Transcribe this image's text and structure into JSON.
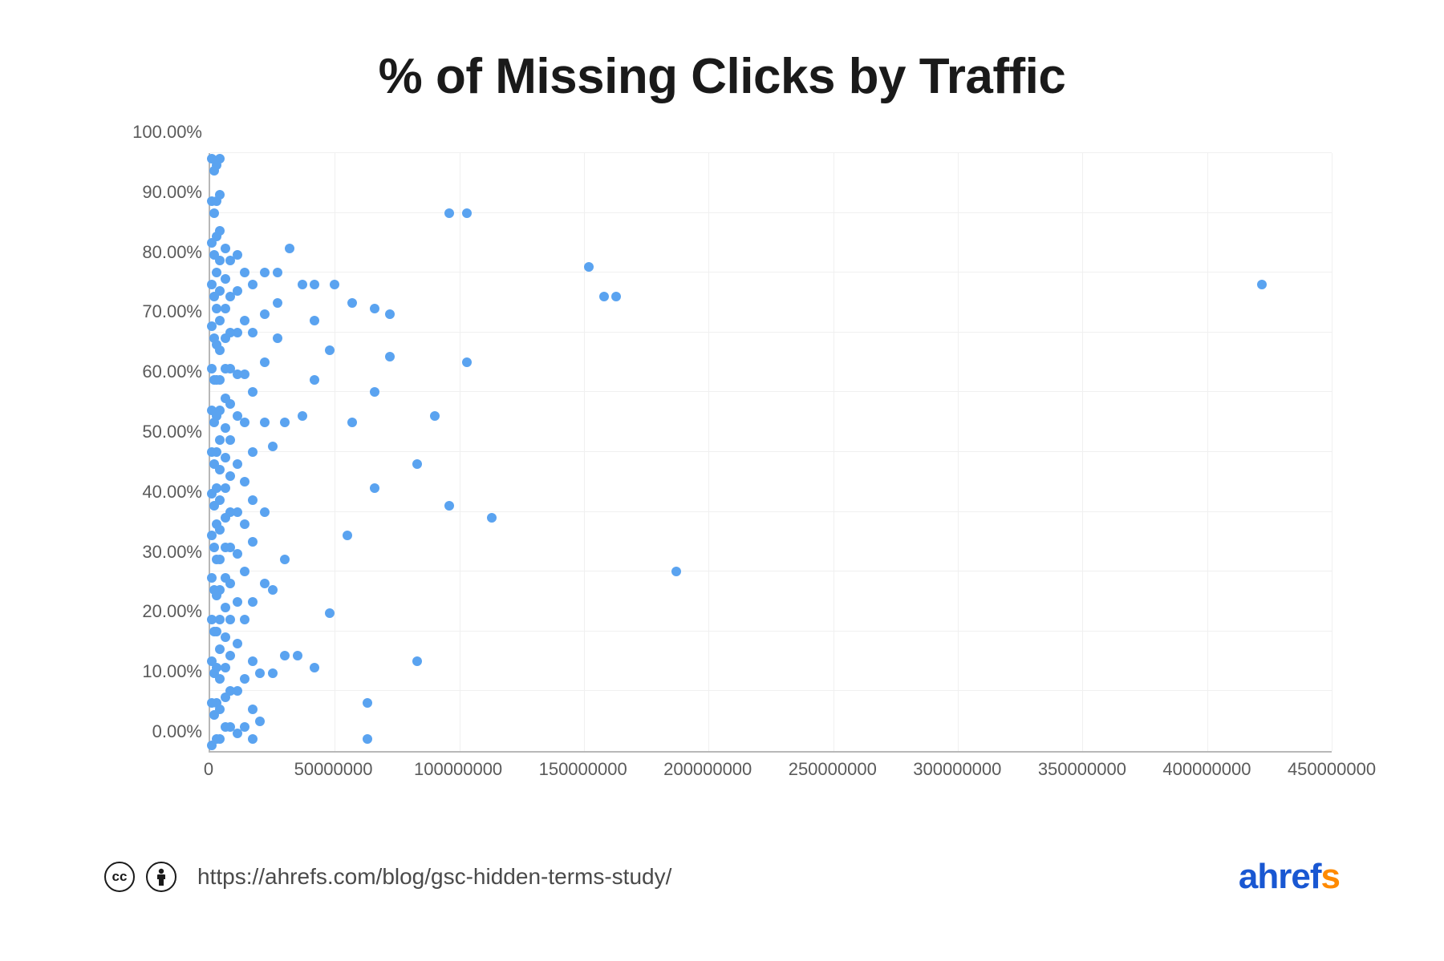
{
  "chart": {
    "type": "scatter",
    "title": "% of Missing Clicks by Traffic",
    "title_fontsize": 62,
    "title_color": "#1a1a1a",
    "background_color": "#ffffff",
    "grid_color": "#f0f0f0",
    "axis_color": "#b8b8b8",
    "tick_fontsize": 22,
    "tick_color": "#5a5a5a",
    "xlim": [
      0,
      450000000
    ],
    "ylim": [
      0,
      100
    ],
    "xticks": [
      0,
      50000000,
      100000000,
      150000000,
      200000000,
      250000000,
      300000000,
      350000000,
      400000000,
      450000000
    ],
    "xtick_labels": [
      "0",
      "50000000",
      "100000000",
      "150000000",
      "200000000",
      "250000000",
      "300000000",
      "350000000",
      "400000000",
      "450000000"
    ],
    "yticks": [
      0,
      10,
      20,
      30,
      40,
      50,
      60,
      70,
      80,
      90,
      100
    ],
    "ytick_labels": [
      "0.00%",
      "10.00%",
      "20.00%",
      "30.00%",
      "40.00%",
      "50.00%",
      "60.00%",
      "70.00%",
      "80.00%",
      "90.00%",
      "100.00%"
    ],
    "marker_color": "#5aa3f0",
    "marker_size": 12,
    "points": [
      [
        422000000,
        78
      ],
      [
        187000000,
        30
      ],
      [
        163000000,
        76
      ],
      [
        158000000,
        76
      ],
      [
        152000000,
        81
      ],
      [
        113000000,
        39
      ],
      [
        103000000,
        90
      ],
      [
        103000000,
        65
      ],
      [
        96000000,
        90
      ],
      [
        96000000,
        41
      ],
      [
        90000000,
        56
      ],
      [
        83000000,
        48
      ],
      [
        83000000,
        15
      ],
      [
        72000000,
        66
      ],
      [
        72000000,
        73
      ],
      [
        66000000,
        74
      ],
      [
        66000000,
        60
      ],
      [
        66000000,
        44
      ],
      [
        63000000,
        8
      ],
      [
        63000000,
        2
      ],
      [
        57000000,
        75
      ],
      [
        57000000,
        55
      ],
      [
        55000000,
        36
      ],
      [
        50000000,
        78
      ],
      [
        48000000,
        67
      ],
      [
        48000000,
        23
      ],
      [
        42000000,
        78
      ],
      [
        42000000,
        72
      ],
      [
        42000000,
        62
      ],
      [
        42000000,
        14
      ],
      [
        37000000,
        78
      ],
      [
        37000000,
        56
      ],
      [
        35000000,
        16
      ],
      [
        32000000,
        84
      ],
      [
        30000000,
        55
      ],
      [
        30000000,
        32
      ],
      [
        30000000,
        16
      ],
      [
        27000000,
        80
      ],
      [
        27000000,
        75
      ],
      [
        27000000,
        69
      ],
      [
        25000000,
        51
      ],
      [
        25000000,
        27
      ],
      [
        25000000,
        13
      ],
      [
        22000000,
        80
      ],
      [
        22000000,
        73
      ],
      [
        22000000,
        65
      ],
      [
        22000000,
        55
      ],
      [
        22000000,
        40
      ],
      [
        22000000,
        28
      ],
      [
        20000000,
        13
      ],
      [
        20000000,
        5
      ],
      [
        17000000,
        78
      ],
      [
        17000000,
        70
      ],
      [
        17000000,
        60
      ],
      [
        17000000,
        50
      ],
      [
        17000000,
        42
      ],
      [
        17000000,
        35
      ],
      [
        17000000,
        25
      ],
      [
        17000000,
        15
      ],
      [
        17000000,
        7
      ],
      [
        17000000,
        2
      ],
      [
        14000000,
        80
      ],
      [
        14000000,
        72
      ],
      [
        14000000,
        63
      ],
      [
        14000000,
        55
      ],
      [
        14000000,
        45
      ],
      [
        14000000,
        38
      ],
      [
        14000000,
        30
      ],
      [
        14000000,
        22
      ],
      [
        14000000,
        12
      ],
      [
        14000000,
        4
      ],
      [
        11000000,
        83
      ],
      [
        11000000,
        77
      ],
      [
        11000000,
        70
      ],
      [
        11000000,
        63
      ],
      [
        11000000,
        56
      ],
      [
        11000000,
        48
      ],
      [
        11000000,
        40
      ],
      [
        11000000,
        33
      ],
      [
        11000000,
        25
      ],
      [
        11000000,
        18
      ],
      [
        11000000,
        10
      ],
      [
        11000000,
        3
      ],
      [
        8000000,
        82
      ],
      [
        8000000,
        76
      ],
      [
        8000000,
        70
      ],
      [
        8000000,
        64
      ],
      [
        8000000,
        58
      ],
      [
        8000000,
        52
      ],
      [
        8000000,
        46
      ],
      [
        8000000,
        40
      ],
      [
        8000000,
        34
      ],
      [
        8000000,
        28
      ],
      [
        8000000,
        22
      ],
      [
        8000000,
        16
      ],
      [
        8000000,
        10
      ],
      [
        8000000,
        4
      ],
      [
        6000000,
        84
      ],
      [
        6000000,
        79
      ],
      [
        6000000,
        74
      ],
      [
        6000000,
        69
      ],
      [
        6000000,
        64
      ],
      [
        6000000,
        59
      ],
      [
        6000000,
        54
      ],
      [
        6000000,
        49
      ],
      [
        6000000,
        44
      ],
      [
        6000000,
        39
      ],
      [
        6000000,
        34
      ],
      [
        6000000,
        29
      ],
      [
        6000000,
        24
      ],
      [
        6000000,
        19
      ],
      [
        6000000,
        14
      ],
      [
        6000000,
        9
      ],
      [
        6000000,
        4
      ],
      [
        4000000,
        99
      ],
      [
        4000000,
        93
      ],
      [
        4000000,
        87
      ],
      [
        4000000,
        82
      ],
      [
        4000000,
        77
      ],
      [
        4000000,
        72
      ],
      [
        4000000,
        67
      ],
      [
        4000000,
        62
      ],
      [
        4000000,
        57
      ],
      [
        4000000,
        52
      ],
      [
        4000000,
        47
      ],
      [
        4000000,
        42
      ],
      [
        4000000,
        37
      ],
      [
        4000000,
        32
      ],
      [
        4000000,
        27
      ],
      [
        4000000,
        22
      ],
      [
        4000000,
        17
      ],
      [
        4000000,
        12
      ],
      [
        4000000,
        7
      ],
      [
        4000000,
        2
      ],
      [
        2500000,
        98
      ],
      [
        2500000,
        92
      ],
      [
        2500000,
        86
      ],
      [
        2500000,
        80
      ],
      [
        2500000,
        74
      ],
      [
        2500000,
        68
      ],
      [
        2500000,
        62
      ],
      [
        2500000,
        56
      ],
      [
        2500000,
        50
      ],
      [
        2500000,
        44
      ],
      [
        2500000,
        38
      ],
      [
        2500000,
        32
      ],
      [
        2500000,
        26
      ],
      [
        2500000,
        20
      ],
      [
        2500000,
        14
      ],
      [
        2500000,
        8
      ],
      [
        2500000,
        2
      ],
      [
        1500000,
        97
      ],
      [
        1500000,
        90
      ],
      [
        1500000,
        83
      ],
      [
        1500000,
        76
      ],
      [
        1500000,
        69
      ],
      [
        1500000,
        62
      ],
      [
        1500000,
        55
      ],
      [
        1500000,
        48
      ],
      [
        1500000,
        41
      ],
      [
        1500000,
        34
      ],
      [
        1500000,
        27
      ],
      [
        1500000,
        20
      ],
      [
        1500000,
        13
      ],
      [
        1500000,
        6
      ],
      [
        800000,
        99
      ],
      [
        800000,
        92
      ],
      [
        800000,
        85
      ],
      [
        800000,
        78
      ],
      [
        800000,
        71
      ],
      [
        800000,
        64
      ],
      [
        800000,
        57
      ],
      [
        800000,
        50
      ],
      [
        800000,
        43
      ],
      [
        800000,
        36
      ],
      [
        800000,
        29
      ],
      [
        800000,
        22
      ],
      [
        800000,
        15
      ],
      [
        800000,
        8
      ],
      [
        800000,
        1
      ]
    ]
  },
  "footer": {
    "source_url": "https://ahrefs.com/blog/gsc-hidden-terms-study/",
    "source_fontsize": 28,
    "source_color": "#4a4a4a",
    "logo_text_1": "ahref",
    "logo_text_2": "s",
    "logo_color_1": "#1957d2",
    "logo_color_2": "#ff8a00",
    "logo_fontsize": 44
  }
}
